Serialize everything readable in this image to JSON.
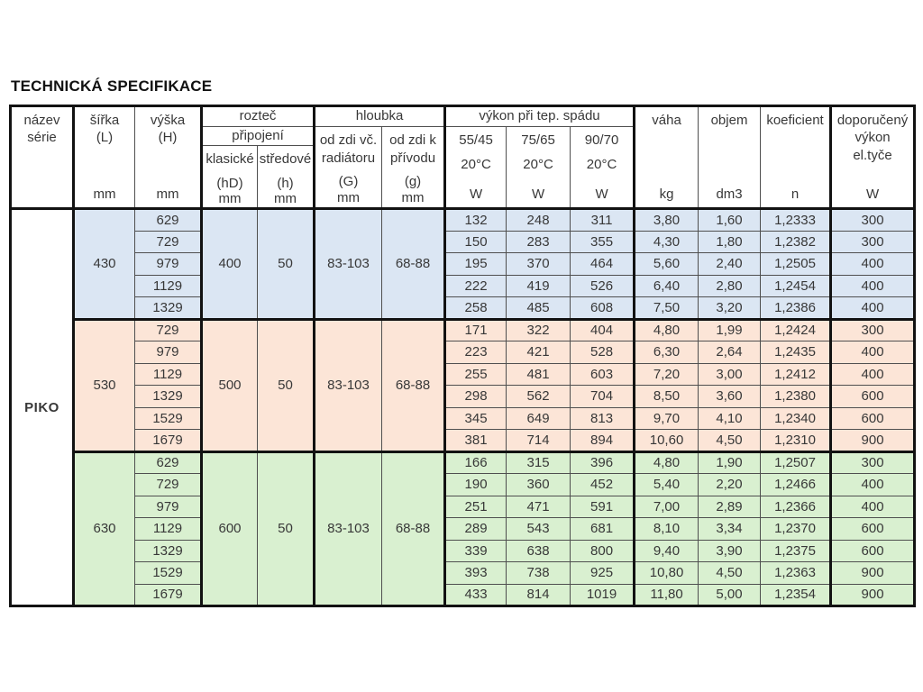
{
  "page_title": "TECHNICKÁ SPECIFIKACE",
  "header": {
    "nazev_l1": "název",
    "nazev_l2": "série",
    "sirka_l1": "šířka",
    "sirka_l2": "(L)",
    "vyska_l1": "výška",
    "vyska_l2": "(H)",
    "roztec": "rozteč",
    "pripojeni": "připojení",
    "klasicke_l1": "klasické",
    "klasicke_l2": "(hD)",
    "stredove_l1": "středové",
    "stredove_l2": "(h)",
    "hloubka": "hloubka",
    "g1_l1": "od zdi vč.",
    "g1_l2": "radiátoru",
    "g1_l3": "(G)",
    "g2_l1": "od zdi k",
    "g2_l2": "přívodu",
    "g2_l3": "(g)",
    "vykon": "výkon při tep. spádu",
    "t1_l1": "55/45",
    "t2_l1": "75/65",
    "t3_l1": "90/70",
    "t_l2": "20°C",
    "vaha": "váha",
    "objem": "objem",
    "koeficient": "koeficient",
    "dop_l1": "doporučený",
    "dop_l2": "výkon",
    "dop_l3": "el.tyče",
    "unit_mm": "mm",
    "unit_w": "W",
    "unit_kg": "kg",
    "unit_dm3": "dm3",
    "unit_n": "n"
  },
  "colors": {
    "group_430": "#dbe6f3",
    "group_530": "#fce5d7",
    "group_630": "#d9f0d0",
    "border_thick": "#121212",
    "border_thin": "#4f4f4f",
    "text": "#383838"
  },
  "table": {
    "series_label": "PIKO",
    "groups": [
      {
        "color": "#dbe6f3",
        "sirka": "430",
        "klasicke": "400",
        "stredove": "50",
        "hloubka_G": "83-103",
        "hloubka_g": "68-88",
        "rows": [
          [
            "629",
            "132",
            "248",
            "311",
            "3,80",
            "1,60",
            "1,2333",
            "300"
          ],
          [
            "729",
            "150",
            "283",
            "355",
            "4,30",
            "1,80",
            "1,2382",
            "300"
          ],
          [
            "979",
            "195",
            "370",
            "464",
            "5,60",
            "2,40",
            "1,2505",
            "400"
          ],
          [
            "1129",
            "222",
            "419",
            "526",
            "6,40",
            "2,80",
            "1,2454",
            "400"
          ],
          [
            "1329",
            "258",
            "485",
            "608",
            "7,50",
            "3,20",
            "1,2386",
            "400"
          ]
        ]
      },
      {
        "color": "#fce5d7",
        "sirka": "530",
        "klasicke": "500",
        "stredove": "50",
        "hloubka_G": "83-103",
        "hloubka_g": "68-88",
        "rows": [
          [
            "729",
            "171",
            "322",
            "404",
            "4,80",
            "1,99",
            "1,2424",
            "300"
          ],
          [
            "979",
            "223",
            "421",
            "528",
            "6,30",
            "2,64",
            "1,2435",
            "400"
          ],
          [
            "1129",
            "255",
            "481",
            "603",
            "7,20",
            "3,00",
            "1,2412",
            "400"
          ],
          [
            "1329",
            "298",
            "562",
            "704",
            "8,50",
            "3,60",
            "1,2380",
            "600"
          ],
          [
            "1529",
            "345",
            "649",
            "813",
            "9,70",
            "4,10",
            "1,2340",
            "600"
          ],
          [
            "1679",
            "381",
            "714",
            "894",
            "10,60",
            "4,50",
            "1,2310",
            "900"
          ]
        ]
      },
      {
        "color": "#d9f0d0",
        "sirka": "630",
        "klasicke": "600",
        "stredove": "50",
        "hloubka_G": "83-103",
        "hloubka_g": "68-88",
        "rows": [
          [
            "629",
            "166",
            "315",
            "396",
            "4,80",
            "1,90",
            "1,2507",
            "300"
          ],
          [
            "729",
            "190",
            "360",
            "452",
            "5,40",
            "2,20",
            "1,2466",
            "400"
          ],
          [
            "979",
            "251",
            "471",
            "591",
            "7,00",
            "2,89",
            "1,2366",
            "400"
          ],
          [
            "1129",
            "289",
            "543",
            "681",
            "8,10",
            "3,34",
            "1,2370",
            "600"
          ],
          [
            "1329",
            "339",
            "638",
            "800",
            "9,40",
            "3,90",
            "1,2375",
            "600"
          ],
          [
            "1529",
            "393",
            "738",
            "925",
            "10,80",
            "4,50",
            "1,2363",
            "900"
          ],
          [
            "1679",
            "433",
            "814",
            "1019",
            "11,80",
            "5,00",
            "1,2354",
            "900"
          ]
        ]
      }
    ]
  }
}
